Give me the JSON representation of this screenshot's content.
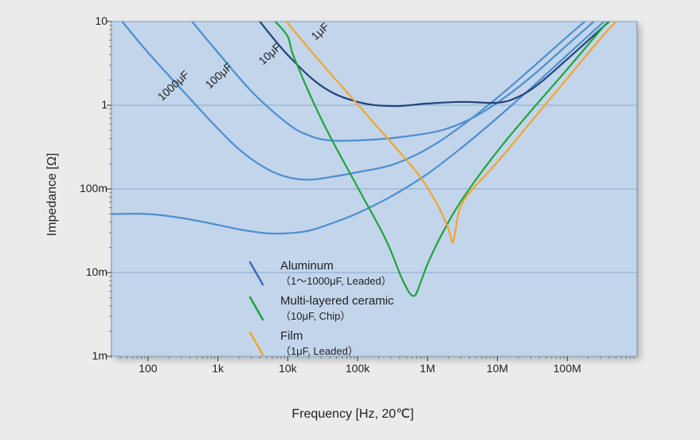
{
  "chart": {
    "type": "line",
    "background_page": "#ebebeb",
    "plot_background": "#c3d5eb",
    "grid_color": "#7fa6cc",
    "border_color": "#6a90b6",
    "xlabel": "Frequency [Hz, 20℃]",
    "ylabel": "Impedance [Ω]",
    "label_fontsize": 16,
    "tick_fontsize": 14,
    "xscale": "log",
    "yscale": "log",
    "xlim_exp": [
      1.477,
      9.0
    ],
    "ylim_exp": [
      -3.0,
      1.0
    ],
    "x_ticks": [
      {
        "exp": 2,
        "label": "100"
      },
      {
        "exp": 3,
        "label": "1k"
      },
      {
        "exp": 4,
        "label": "10k"
      },
      {
        "exp": 5,
        "label": "100k"
      },
      {
        "exp": 6,
        "label": "1M"
      },
      {
        "exp": 7,
        "label": "10M"
      },
      {
        "exp": 8,
        "label": "100M"
      }
    ],
    "y_ticks": [
      {
        "exp": 1,
        "label": "10"
      },
      {
        "exp": 0,
        "label": "1"
      },
      {
        "exp": -1,
        "label": "100m"
      },
      {
        "exp": -2,
        "label": "10m"
      },
      {
        "exp": -3,
        "label": "1m"
      }
    ],
    "legend": {
      "items": [
        {
          "label": "Aluminum",
          "sublabel": "（1～1000μF, Leaded）",
          "color": "#3c6fb3",
          "swatch_width": 2.5
        },
        {
          "label": "Multi-layered ceramic",
          "sublabel": "（10μF, Chip）",
          "color": "#1ea53b",
          "swatch_width": 2.5
        },
        {
          "label": "Film",
          "sublabel": "（1μF, Leaded）",
          "color": "#f2a52a",
          "swatch_width": 2.5
        }
      ]
    },
    "series": [
      {
        "name": "Al-1000uF",
        "label": "1000μF",
        "color": "#4d8ed1",
        "width": 2.2,
        "points": [
          [
            1.477,
            -1.3
          ],
          [
            2.0,
            -1.3
          ],
          [
            2.5,
            -1.35
          ],
          [
            3.0,
            -1.43
          ],
          [
            3.35,
            -1.49
          ],
          [
            3.7,
            -1.53
          ],
          [
            4.0,
            -1.53
          ],
          [
            4.3,
            -1.5
          ],
          [
            4.6,
            -1.42
          ],
          [
            5.0,
            -1.29
          ],
          [
            5.5,
            -1.08
          ],
          [
            6.0,
            -0.82
          ],
          [
            6.5,
            -0.5
          ],
          [
            7.0,
            -0.15
          ],
          [
            7.5,
            0.22
          ],
          [
            8.0,
            0.6
          ],
          [
            8.5,
            0.98
          ],
          [
            8.53,
            1.0
          ]
        ]
      },
      {
        "name": "Al-100uF",
        "label": "100μF",
        "color": "#4d8ed1",
        "width": 2.2,
        "points": [
          [
            1.63,
            1.0
          ],
          [
            2.0,
            0.63
          ],
          [
            2.5,
            0.17
          ],
          [
            3.0,
            -0.28
          ],
          [
            3.35,
            -0.56
          ],
          [
            3.7,
            -0.76
          ],
          [
            4.0,
            -0.86
          ],
          [
            4.3,
            -0.89
          ],
          [
            4.6,
            -0.86
          ],
          [
            5.0,
            -0.8
          ],
          [
            5.5,
            -0.71
          ],
          [
            6.0,
            -0.52
          ],
          [
            6.5,
            -0.24
          ],
          [
            7.0,
            0.09
          ],
          [
            7.5,
            0.45
          ],
          [
            8.0,
            0.82
          ],
          [
            8.25,
            1.0
          ]
        ]
      },
      {
        "name": "Al-10uF",
        "label": "10μF",
        "color": "#4d8ed1",
        "width": 2.2,
        "points": [
          [
            2.63,
            1.0
          ],
          [
            3.0,
            0.63
          ],
          [
            3.5,
            0.15
          ],
          [
            4.0,
            -0.22
          ],
          [
            4.3,
            -0.36
          ],
          [
            4.6,
            -0.42
          ],
          [
            5.0,
            -0.42
          ],
          [
            5.4,
            -0.4
          ],
          [
            5.8,
            -0.36
          ],
          [
            6.2,
            -0.3
          ],
          [
            6.6,
            -0.17
          ],
          [
            7.0,
            0.03
          ],
          [
            7.5,
            0.35
          ],
          [
            8.0,
            0.72
          ],
          [
            8.38,
            1.0
          ]
        ]
      },
      {
        "name": "Al-1uF",
        "label": "1μF",
        "color": "#22447a",
        "width": 2.2,
        "points": [
          [
            3.6,
            1.0
          ],
          [
            4.0,
            0.6
          ],
          [
            4.5,
            0.22
          ],
          [
            5.0,
            0.04
          ],
          [
            5.5,
            -0.01
          ],
          [
            6.0,
            0.02
          ],
          [
            6.5,
            0.04
          ],
          [
            7.0,
            0.03
          ],
          [
            7.3,
            0.1
          ],
          [
            7.6,
            0.26
          ],
          [
            8.0,
            0.55
          ],
          [
            8.4,
            0.85
          ],
          [
            8.6,
            1.0
          ]
        ]
      },
      {
        "name": "MLCC-10uF",
        "label": "",
        "color": "#1ea53b",
        "width": 2.2,
        "points": [
          [
            3.82,
            1.0
          ],
          [
            4.0,
            0.82
          ],
          [
            4.1,
            0.55
          ],
          [
            4.5,
            -0.2
          ],
          [
            5.0,
            -0.98
          ],
          [
            5.4,
            -1.6
          ],
          [
            5.65,
            -2.1
          ],
          [
            5.8,
            -2.28
          ],
          [
            5.9,
            -2.12
          ],
          [
            6.0,
            -1.9
          ],
          [
            6.2,
            -1.55
          ],
          [
            6.5,
            -1.12
          ],
          [
            7.0,
            -0.55
          ],
          [
            7.5,
            -0.05
          ],
          [
            8.0,
            0.43
          ],
          [
            8.5,
            0.92
          ],
          [
            8.6,
            1.0
          ]
        ]
      },
      {
        "name": "Film-1uF",
        "label": "",
        "color": "#f2a52a",
        "width": 2.2,
        "points": [
          [
            3.98,
            1.0
          ],
          [
            4.4,
            0.58
          ],
          [
            4.8,
            0.2
          ],
          [
            5.2,
            -0.18
          ],
          [
            5.6,
            -0.56
          ],
          [
            5.9,
            -0.86
          ],
          [
            6.15,
            -1.2
          ],
          [
            6.3,
            -1.48
          ],
          [
            6.36,
            -1.64
          ],
          [
            6.4,
            -1.5
          ],
          [
            6.43,
            -1.34
          ],
          [
            6.47,
            -1.22
          ],
          [
            6.55,
            -1.1
          ],
          [
            6.7,
            -0.95
          ],
          [
            7.0,
            -0.68
          ],
          [
            7.5,
            -0.18
          ],
          [
            8.0,
            0.32
          ],
          [
            8.5,
            0.82
          ],
          [
            8.7,
            1.0
          ]
        ]
      }
    ],
    "curve_labels": [
      {
        "text": "1000μF",
        "x_exp": 2.4,
        "y_exp": 0.2,
        "rotate": -43
      },
      {
        "text": "100μF",
        "x_exp": 3.05,
        "y_exp": 0.32,
        "rotate": -43
      },
      {
        "text": "10μF",
        "x_exp": 3.78,
        "y_exp": 0.58,
        "rotate": -43
      },
      {
        "text": "1μF",
        "x_exp": 4.5,
        "y_exp": 0.85,
        "rotate": -43
      }
    ]
  }
}
